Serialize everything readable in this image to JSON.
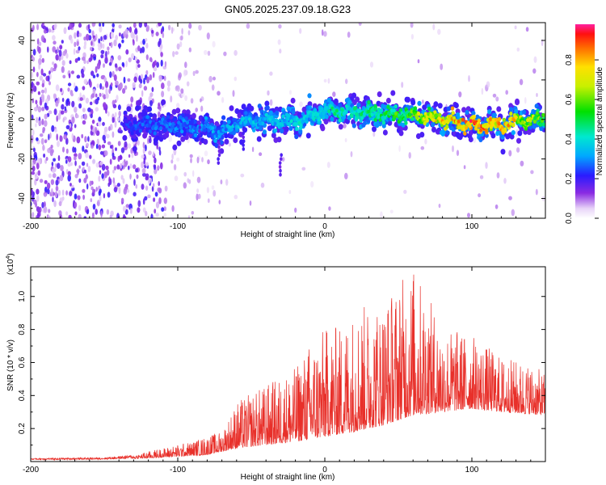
{
  "title": "GN05.2025.237.09.18.G23",
  "chart_data": [
    {
      "type": "heatmap",
      "xlabel": "Height of straight line (km)",
      "ylabel": "Frequency (Hz)",
      "xlim": [
        -200,
        150
      ],
      "ylim": [
        -50,
        49
      ],
      "x_ticks": [
        -200,
        -100,
        0,
        100
      ],
      "y_ticks": [
        -40,
        -20,
        0,
        20,
        40
      ],
      "colorbar": {
        "label": "Normalized spectral amplitude",
        "range": [
          0,
          0.98
        ],
        "ticks": [
          0.0,
          0.2,
          0.4,
          0.6,
          0.8
        ]
      },
      "ridge_frequency": {
        "x": [
          -135,
          -120,
          -100,
          -80,
          -72,
          -60,
          -40,
          -20,
          0,
          20,
          40,
          60,
          80,
          100,
          120,
          135,
          150
        ],
        "y": [
          -3,
          -2,
          -3,
          -4,
          -7,
          -2,
          0,
          -1,
          4,
          4,
          3,
          2,
          0,
          -3,
          -3,
          0,
          0
        ]
      },
      "ridge_peak_amplitude": {
        "x": [
          -135,
          -100,
          -60,
          -20,
          0,
          40,
          60,
          80,
          100,
          120,
          150
        ],
        "y": [
          0.25,
          0.3,
          0.35,
          0.4,
          0.45,
          0.5,
          0.65,
          0.8,
          0.9,
          0.85,
          0.6
        ]
      }
    },
    {
      "type": "line",
      "xlabel": "Height of straight line (km)",
      "ylabel": "SNR (10 * v/v)",
      "y_multiplier": "(x10",
      "y_multiplier_exp": "4",
      "y_multiplier_close": ")",
      "xlim": [
        -200,
        150
      ],
      "ylim": [
        0,
        1.18
      ],
      "x_ticks": [
        -200,
        -100,
        0,
        100
      ],
      "y_ticks": [
        0.2,
        0.4,
        0.6,
        0.8,
        1.0
      ],
      "color": "#e8302a",
      "envelope": {
        "x": [
          -200,
          -150,
          -130,
          -110,
          -90,
          -70,
          -60,
          -40,
          -20,
          -10,
          0,
          10,
          20,
          40,
          50,
          60,
          80,
          100,
          120,
          140,
          150
        ],
        "y": [
          0.02,
          0.025,
          0.04,
          0.08,
          0.12,
          0.18,
          0.35,
          0.45,
          0.55,
          0.7,
          0.78,
          0.8,
          0.9,
          0.95,
          1.05,
          1.15,
          0.8,
          0.75,
          0.62,
          0.58,
          0.52
        ]
      },
      "baseline": {
        "x": [
          -200,
          -150,
          -120,
          -80,
          -60,
          -40,
          -20,
          0,
          20,
          40,
          60,
          80,
          100,
          120,
          150
        ],
        "y": [
          0.01,
          0.012,
          0.02,
          0.04,
          0.08,
          0.1,
          0.12,
          0.15,
          0.18,
          0.22,
          0.28,
          0.3,
          0.32,
          0.3,
          0.28
        ]
      }
    }
  ]
}
